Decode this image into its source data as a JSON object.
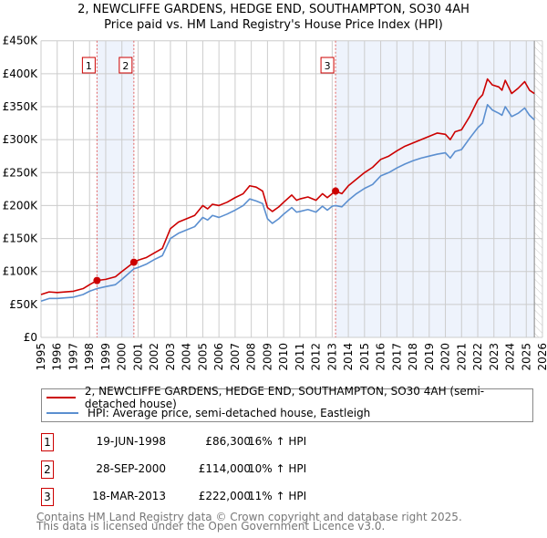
{
  "title_line1": "2, NEWCLIFFE GARDENS, HEDGE END, SOUTHAMPTON, SO30 4AH",
  "title_line2": "Price paid vs. HM Land Registry's House Price Index (HPI)",
  "chart_data": {
    "type": "line",
    "xlim": [
      1995,
      2026
    ],
    "ylim": [
      0,
      450000
    ],
    "x_ticks": [
      "1995",
      "1996",
      "1997",
      "1998",
      "1999",
      "2000",
      "2001",
      "2002",
      "2003",
      "2004",
      "2005",
      "2006",
      "2007",
      "2008",
      "2009",
      "2010",
      "2011",
      "2012",
      "2013",
      "2014",
      "2015",
      "2016",
      "2017",
      "2018",
      "2019",
      "2020",
      "2021",
      "2022",
      "2023",
      "2024",
      "2025",
      "2026"
    ],
    "y_ticks": [
      {
        "v": 0,
        "label": "£0"
      },
      {
        "v": 50000,
        "label": "£50K"
      },
      {
        "v": 100000,
        "label": "£100K"
      },
      {
        "v": 150000,
        "label": "£150K"
      },
      {
        "v": 200000,
        "label": "£200K"
      },
      {
        "v": 250000,
        "label": "£250K"
      },
      {
        "v": 300000,
        "label": "£300K"
      },
      {
        "v": 350000,
        "label": "£350K"
      },
      {
        "v": 400000,
        "label": "£400K"
      },
      {
        "v": 450000,
        "label": "£450K"
      }
    ],
    "grid": true,
    "colors": {
      "property": "#cc0000",
      "hpi": "#5b8fd0",
      "shade": "#eef3fc"
    },
    "shaded_ranges": [
      [
        1998.46,
        2000.74
      ],
      [
        2013.21,
        2025.5
      ]
    ],
    "future_hatch_from": 2025.5,
    "series": [
      {
        "name": "property",
        "x": [
          1995,
          1995.5,
          1996,
          1997,
          1997.6,
          1998,
          1998.46,
          1999,
          1999.6,
          2000,
          2000.74,
          2001,
          2001.5,
          2002,
          2002.5,
          2003,
          2003.5,
          2004,
          2004.5,
          2005,
          2005.3,
          2005.6,
          2006,
          2006.5,
          2007,
          2007.5,
          2007.9,
          2008.3,
          2008.7,
          2009,
          2009.3,
          2009.7,
          2010,
          2010.5,
          2010.8,
          2011,
          2011.5,
          2012,
          2012.4,
          2012.7,
          2013,
          2013.21,
          2013.6,
          2014,
          2014.5,
          2015,
          2015.5,
          2016,
          2016.5,
          2017,
          2017.5,
          2018,
          2018.5,
          2019,
          2019.5,
          2020,
          2020.3,
          2020.6,
          2021,
          2021.5,
          2022,
          2022.3,
          2022.6,
          2022.9,
          2023.3,
          2023.5,
          2023.7,
          2024.1,
          2024.5,
          2024.9,
          2025.2,
          2025.5
        ],
        "y": [
          65000,
          69000,
          68000,
          70000,
          74000,
          80000,
          86300,
          88000,
          92000,
          100000,
          114000,
          117000,
          121000,
          128000,
          135000,
          165000,
          175000,
          180000,
          185000,
          200000,
          195000,
          202000,
          200000,
          205000,
          212000,
          218000,
          230000,
          228000,
          222000,
          197000,
          191000,
          198000,
          205000,
          216000,
          208000,
          210000,
          213000,
          208000,
          218000,
          212000,
          218000,
          222000,
          218000,
          230000,
          240000,
          250000,
          258000,
          270000,
          275000,
          283000,
          290000,
          295000,
          300000,
          305000,
          310000,
          308000,
          300000,
          312000,
          315000,
          335000,
          360000,
          368000,
          392000,
          383000,
          380000,
          375000,
          390000,
          370000,
          378000,
          388000,
          375000,
          370000
        ]
      },
      {
        "name": "hpi",
        "x": [
          1995,
          1995.5,
          1996,
          1997,
          1997.6,
          1998,
          1998.46,
          1999,
          1999.6,
          2000,
          2000.74,
          2001,
          2001.5,
          2002,
          2002.5,
          2003,
          2003.5,
          2004,
          2004.5,
          2005,
          2005.3,
          2005.6,
          2006,
          2006.5,
          2007,
          2007.5,
          2007.9,
          2008.3,
          2008.7,
          2009,
          2009.3,
          2009.7,
          2010,
          2010.5,
          2010.8,
          2011,
          2011.5,
          2012,
          2012.4,
          2012.7,
          2013,
          2013.21,
          2013.6,
          2014,
          2014.5,
          2015,
          2015.5,
          2016,
          2016.5,
          2017,
          2017.5,
          2018,
          2018.5,
          2019,
          2019.5,
          2020,
          2020.3,
          2020.6,
          2021,
          2021.5,
          2022,
          2022.3,
          2022.6,
          2022.9,
          2023.3,
          2023.5,
          2023.7,
          2024.1,
          2024.5,
          2024.9,
          2025.2,
          2025.5
        ],
        "y": [
          55000,
          59000,
          59000,
          61000,
          65000,
          70000,
          74000,
          77000,
          80000,
          88000,
          104000,
          106000,
          111000,
          118000,
          124000,
          150000,
          158000,
          163000,
          168000,
          182000,
          178000,
          185000,
          182000,
          187000,
          193000,
          200000,
          210000,
          207000,
          203000,
          180000,
          173000,
          180000,
          187000,
          197000,
          190000,
          191000,
          194000,
          190000,
          199000,
          193000,
          199000,
          200000,
          198000,
          208000,
          218000,
          226000,
          232000,
          245000,
          250000,
          257000,
          263000,
          268000,
          272000,
          275000,
          278000,
          280000,
          272000,
          282000,
          285000,
          302000,
          318000,
          325000,
          353000,
          345000,
          340000,
          337000,
          350000,
          335000,
          340000,
          348000,
          337000,
          330000
        ]
      }
    ],
    "sales": [
      {
        "n": "1",
        "x": 1998.46,
        "y": 86300
      },
      {
        "n": "2",
        "x": 2000.74,
        "y": 114000
      },
      {
        "n": "3",
        "x": 2013.21,
        "y": 222000
      }
    ]
  },
  "legend": {
    "property_label": "2, NEWCLIFFE GARDENS, HEDGE END, SOUTHAMPTON, SO30 4AH (semi-detached house)",
    "hpi_label": "HPI: Average price, semi-detached house, Eastleigh"
  },
  "transactions": [
    {
      "n": "1",
      "date": "19-JUN-1998",
      "price": "£86,300",
      "hpi": "16% ↑ HPI"
    },
    {
      "n": "2",
      "date": "28-SEP-2000",
      "price": "£114,000",
      "hpi": "10% ↑ HPI"
    },
    {
      "n": "3",
      "date": "18-MAR-2013",
      "price": "£222,000",
      "hpi": "11% ↑ HPI"
    }
  ],
  "footer": {
    "line1": "Contains HM Land Registry data © Crown copyright and database right 2025.",
    "line2": "This data is licensed under the Open Government Licence v3.0."
  }
}
